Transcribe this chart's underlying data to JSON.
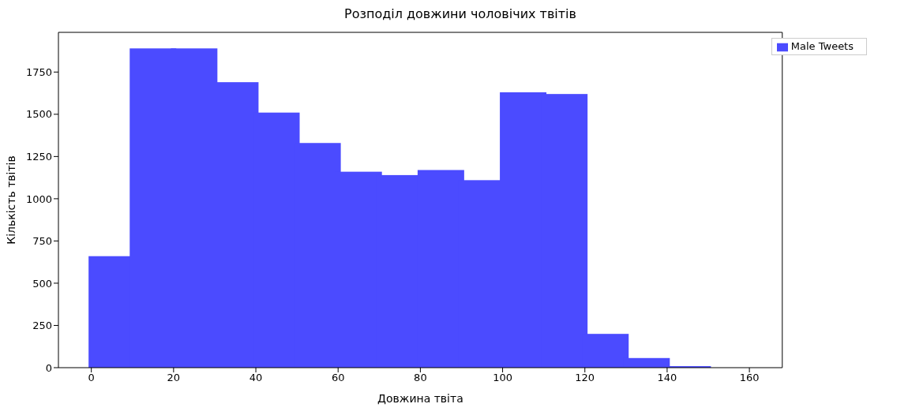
{
  "chart_data": {
    "type": "histogram",
    "title": "Розподіл довжини чоловічих твітів",
    "xlabel": "Довжина твіта",
    "ylabel": "Кількість твітів",
    "bins": [
      0,
      10,
      20,
      30,
      40,
      50,
      60,
      70,
      80,
      90,
      100,
      110,
      120,
      130,
      140,
      150
    ],
    "series": [
      {
        "name": "Male Tweets",
        "color": "#4b4bff",
        "values": [
          660,
          1890,
          1890,
          1690,
          1510,
          1330,
          1160,
          1140,
          1170,
          1110,
          1630,
          1620,
          200,
          57,
          9
        ]
      }
    ],
    "xlim": [
      -8,
      168
    ],
    "xticks": [
      0,
      20,
      40,
      60,
      80,
      100,
      120,
      140,
      160
    ],
    "ylim": [
      0,
      1985
    ],
    "yticks": [
      0,
      250,
      500,
      750,
      1000,
      1250,
      1500,
      1750
    ],
    "grid": false,
    "legend": "top right"
  }
}
